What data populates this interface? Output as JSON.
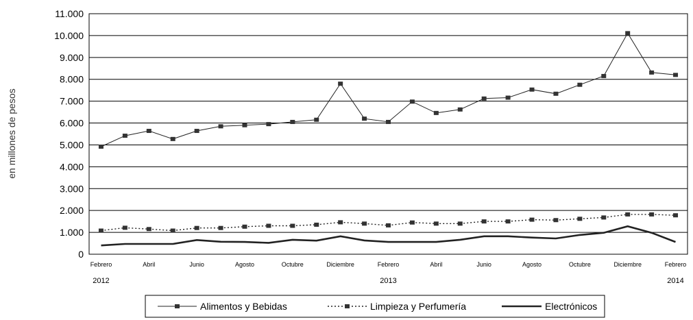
{
  "chart_data": {
    "type": "line",
    "ylabel": "en millones de pesos",
    "ylim": [
      0,
      11000
    ],
    "yticks": [
      "0",
      "1.000",
      "2.000",
      "3.000",
      "4.000",
      "5.000",
      "6.000",
      "7.000",
      "8.000",
      "9.000",
      "10.000",
      "11.000"
    ],
    "grid": true,
    "legend_position": "bottom",
    "x": [
      "2012-02",
      "2012-03",
      "2012-04",
      "2012-05",
      "2012-06",
      "2012-07",
      "2012-08",
      "2012-09",
      "2012-10",
      "2012-11",
      "2012-12",
      "2013-01",
      "2013-02",
      "2013-03",
      "2013-04",
      "2013-05",
      "2013-06",
      "2013-07",
      "2013-08",
      "2013-09",
      "2013-10",
      "2013-11",
      "2013-12",
      "2014-01",
      "2014-02"
    ],
    "month_labels": [
      "Febrero",
      "",
      "Abril",
      "",
      "Junio",
      "",
      "Agosto",
      "",
      "Octubre",
      "",
      "Diciembre",
      "",
      "Febrero",
      "",
      "Abril",
      "",
      "Junio",
      "",
      "Agosto",
      "",
      "Octubre",
      "",
      "Diciembre",
      "",
      "Febrero"
    ],
    "year_labels": [
      {
        "index": 0,
        "label": "2012"
      },
      {
        "index": 12,
        "label": "2013"
      },
      {
        "index": 24,
        "label": "2014"
      }
    ],
    "series": [
      {
        "name": "Alimentos y Bebidas",
        "style": "solid-thin-markers",
        "values": [
          4920,
          5420,
          5640,
          5270,
          5640,
          5850,
          5900,
          5950,
          6050,
          6150,
          7800,
          6200,
          6050,
          6980,
          6460,
          6620,
          7120,
          7160,
          7530,
          7340,
          7750,
          8150,
          10110,
          8310,
          8200
        ]
      },
      {
        "name": "Limpieza y Perfumería",
        "style": "dotted-markers",
        "values": [
          1080,
          1210,
          1150,
          1080,
          1200,
          1200,
          1260,
          1300,
          1300,
          1350,
          1460,
          1400,
          1320,
          1450,
          1400,
          1400,
          1500,
          1500,
          1580,
          1560,
          1620,
          1680,
          1820,
          1820,
          1780
        ]
      },
      {
        "name": "Electrónicos",
        "style": "solid-thick",
        "values": [
          400,
          470,
          470,
          470,
          650,
          570,
          560,
          520,
          660,
          620,
          820,
          630,
          560,
          560,
          560,
          660,
          820,
          820,
          760,
          720,
          880,
          980,
          1280,
          980,
          560
        ]
      }
    ]
  }
}
